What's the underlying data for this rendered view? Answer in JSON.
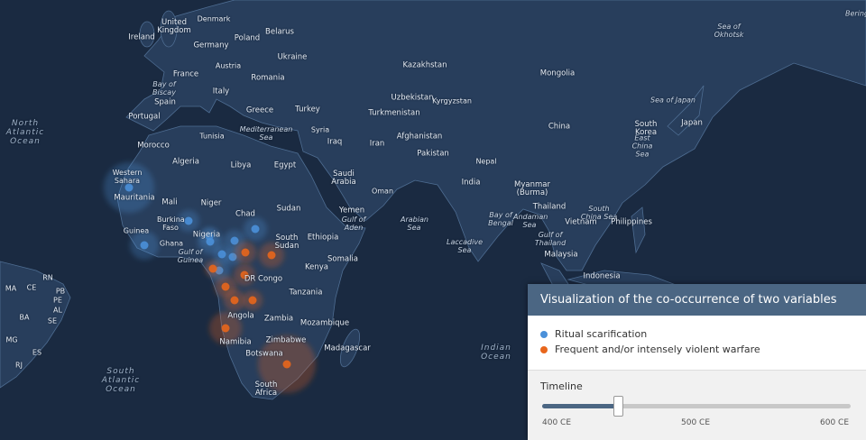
{
  "map": {
    "labels": [
      "Denmark",
      "United Kingdom",
      "Ireland",
      "Poland",
      "Belarus",
      "Germany",
      "Austria",
      "Ukraine",
      "France",
      "Romania",
      "Kazakhstan",
      "Mongolia",
      "Bay of Biscay",
      "Italy",
      "Spain",
      "Uzbekistan",
      "Kyrgyzstan",
      "Greece",
      "Turkey",
      "Turkmenistan",
      "Portugal",
      "Sea of Japan",
      "Japan",
      "South Korea",
      "China",
      "Tunisia",
      "Mediterranean Sea",
      "Syria",
      "North Atlantic Ocean",
      "Iraq",
      "Iran",
      "Afghanistan",
      "Morocco",
      "East China Sea",
      "Pakistan",
      "Nepal",
      "Algeria",
      "Libya",
      "Egypt",
      "Saudi Arabia",
      "Western Sahara",
      "India",
      "Oman",
      "Myanmar (Burma)",
      "Mauritania",
      "Mali",
      "Niger",
      "Sudan",
      "Chad",
      "Yemen",
      "Gulf of Aden",
      "Arabian Sea",
      "Thailand",
      "South China Sea",
      "Bay of Bengal",
      "Andaman Sea",
      "Vietnam",
      "Philippines",
      "Burkina Faso",
      "Guinea",
      "Nigeria",
      "Ghana",
      "Ethiopia",
      "South Sudan",
      "Laccadive Sea",
      "Gulf of Thailand",
      "Gulf of Guinea",
      "Malaysia",
      "Somalia",
      "Kenya",
      "DR Congo",
      "Indonesia",
      "Tanzania",
      "Angola",
      "Zambia",
      "Mozambique",
      "Namibia",
      "Zimbabwe",
      "Madagascar",
      "Indian Ocean",
      "Botswana",
      "South Atlantic Ocean",
      "South Africa",
      "Sea of Okhotsk",
      "Bering",
      "RN",
      "MA",
      "CE",
      "PB",
      "PE",
      "AL",
      "BA",
      "SE",
      "MG",
      "ES",
      "RJ"
    ]
  },
  "panel": {
    "title": "Visualization of the co-occurrence of two variables",
    "legend": [
      {
        "name": "Ritual scarification",
        "color": "#4a90d9"
      },
      {
        "name": "Frequent and/or intensely violent warfare",
        "color": "#e8661c"
      }
    ],
    "timeline": {
      "label": "Timeline",
      "value": 444,
      "ticks": [
        {
          "value": 400,
          "label": "400 CE"
        },
        {
          "value": 500,
          "label": "500 CE"
        },
        {
          "value": 600,
          "label": "600 CE"
        }
      ]
    }
  }
}
